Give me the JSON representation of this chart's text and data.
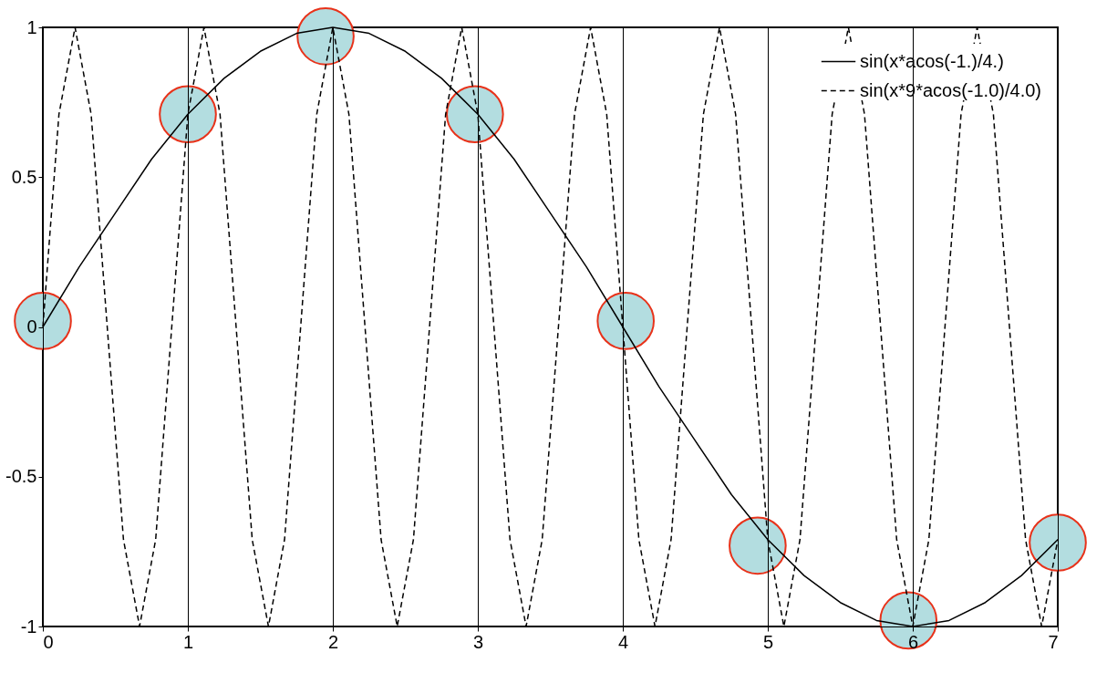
{
  "chart_data": {
    "type": "line",
    "xlim": [
      0,
      7
    ],
    "ylim": [
      -1,
      1
    ],
    "xticks": [
      0,
      1,
      2,
      3,
      4,
      5,
      6,
      7
    ],
    "yticks": [
      -1,
      -0.5,
      0,
      0.5,
      1
    ],
    "grid": "x",
    "legend": "top right",
    "marker": "none",
    "series": [
      {
        "name": "sin(x*acos(-1.)/4.)",
        "color": "#000000",
        "line_style": "solid",
        "x": [
          0,
          0.25,
          0.5,
          0.75,
          1,
          1.25,
          1.5,
          1.75,
          2,
          2.25,
          2.5,
          2.75,
          3,
          3.25,
          3.5,
          3.75,
          4,
          4.25,
          4.5,
          4.75,
          5,
          5.25,
          5.5,
          5.75,
          6,
          6.25,
          6.5,
          6.75,
          7
        ],
        "values": [
          0,
          0.2,
          0.38,
          0.56,
          0.71,
          0.83,
          0.92,
          0.98,
          1,
          0.98,
          0.92,
          0.83,
          0.71,
          0.56,
          0.38,
          0.2,
          0,
          -0.2,
          -0.38,
          -0.56,
          -0.71,
          -0.83,
          -0.92,
          -0.98,
          -1,
          -0.98,
          -0.92,
          -0.83,
          -0.71
        ]
      },
      {
        "name": "sin(x*9*acos(-1.0)/4.0)",
        "color": "#000000",
        "line_style": "dashed",
        "x": [
          0,
          0.111,
          0.222,
          0.333,
          0.444,
          0.556,
          0.667,
          0.778,
          0.889,
          1,
          1.111,
          1.222,
          1.333,
          1.444,
          1.556,
          1.667,
          1.778,
          1.889,
          2,
          2.111,
          2.222,
          2.333,
          2.444,
          2.556,
          2.667,
          2.778,
          2.889,
          3,
          3.111,
          3.222,
          3.333,
          3.444,
          3.556,
          3.667,
          3.778,
          3.889,
          4,
          4.111,
          4.222,
          4.333,
          4.444,
          4.556,
          4.667,
          4.778,
          4.889,
          5,
          5.111,
          5.222,
          5.333,
          5.444,
          5.556,
          5.667,
          5.778,
          5.889,
          6,
          6.111,
          6.222,
          6.333,
          6.444,
          6.556,
          6.667,
          6.778,
          6.889,
          7
        ],
        "values": [
          0,
          0.71,
          1,
          0.71,
          0,
          -0.71,
          -1,
          -0.71,
          0,
          0.71,
          1,
          0.71,
          0,
          -0.71,
          -1,
          -0.71,
          0,
          0.71,
          1,
          0.71,
          0,
          -0.71,
          -1,
          -0.71,
          0,
          0.71,
          1,
          0.71,
          0,
          -0.71,
          -1,
          -0.71,
          0,
          0.71,
          1,
          0.71,
          0,
          -0.71,
          -1,
          -0.71,
          0,
          0.71,
          1,
          0.71,
          0,
          -0.71,
          -1,
          -0.71,
          0,
          0.71,
          1,
          0.71,
          0,
          -0.71,
          -1,
          -0.71,
          0,
          0.71,
          1,
          0.71,
          0,
          -0.71,
          -1,
          -0.71
        ]
      },
      {
        "type": "scatter",
        "marker": "circle",
        "color": "#b3dde0",
        "x": [
          0,
          1,
          1.95,
          2.98,
          4.02,
          4.93,
          5.97,
          7
        ],
        "values": [
          0.02,
          0.71,
          0.97,
          0.71,
          0.02,
          -0.73,
          -0.98,
          -0.72
        ]
      }
    ]
  }
}
